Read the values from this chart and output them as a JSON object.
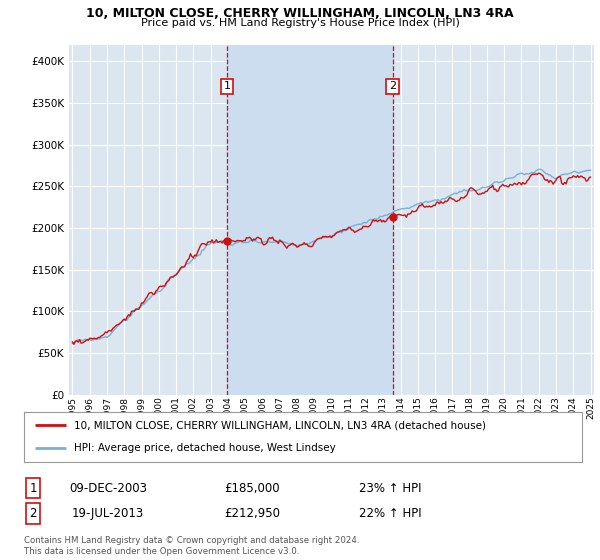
{
  "title1": "10, MILTON CLOSE, CHERRY WILLINGHAM, LINCOLN, LN3 4RA",
  "title2": "Price paid vs. HM Land Registry's House Price Index (HPI)",
  "background_color": "#ffffff",
  "plot_bg_color": "#dce6f0",
  "grid_color": "#ffffff",
  "shade_color": "#ccddf0",
  "sale1_date": "09-DEC-2003",
  "sale1_price": 185000,
  "sale1_hpi": "23% ↑ HPI",
  "sale2_date": "19-JUL-2013",
  "sale2_price": 212950,
  "sale2_hpi": "22% ↑ HPI",
  "legend_line1": "10, MILTON CLOSE, CHERRY WILLINGHAM, LINCOLN, LN3 4RA (detached house)",
  "legend_line2": "HPI: Average price, detached house, West Lindsey",
  "footnote": "Contains HM Land Registry data © Crown copyright and database right 2024.\nThis data is licensed under the Open Government Licence v3.0.",
  "hpi_color": "#7ab0d4",
  "price_color": "#cc1111",
  "vline_color": "#cc1111",
  "marker_box_color": "#cc1111",
  "ylim_min": 0,
  "ylim_max": 420000,
  "x_start_year": 1995,
  "x_end_year": 2025,
  "sale1_x": 2003.958,
  "sale2_x": 2013.542
}
